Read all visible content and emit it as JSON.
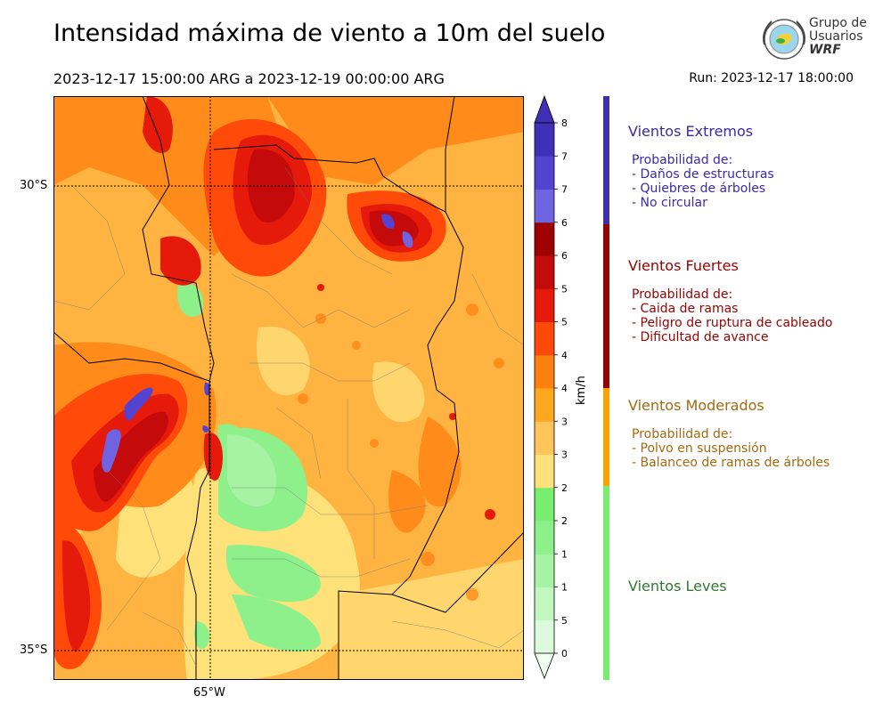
{
  "header": {
    "title": "Intensidad máxima de viento a 10m del suelo",
    "period": "2023-12-17 15:00:00 ARG  a  2023-12-19 00:00:00 ARG",
    "run": "Run: 2023-12-17 18:00:00"
  },
  "logo": {
    "line1": "Grupo de",
    "line2": "Usuarios",
    "line3": "WRF"
  },
  "map": {
    "lat_labels": [
      "30°S",
      "35°S"
    ],
    "lon_labels": [
      "65°W"
    ]
  },
  "colorbar": {
    "unit": "km/h",
    "ticks": [
      "0",
      "5",
      "10",
      "15",
      "20",
      "25",
      "30",
      "35",
      "40",
      "45",
      "50",
      "55",
      "60",
      "65",
      "70",
      "75",
      "80"
    ],
    "colors": [
      "#f0fff0",
      "#dcfadc",
      "#c2f7c0",
      "#a7f3a4",
      "#8ef08a",
      "#78ee70",
      "#ffe17a",
      "#ffc55a",
      "#ffa81f",
      "#ff7f0f",
      "#ff4a0a",
      "#e51a0a",
      "#c40a0a",
      "#9e0000",
      "#7063e0",
      "#5343d0",
      "#4030b8"
    ]
  },
  "categories": [
    {
      "title": "Vientos Extremos",
      "color": "#3a2aa8",
      "body": "Probabilidad de:\n- Daños de estructuras\n- Quiebres de árboles\n- No circular"
    },
    {
      "title": "Vientos Fuertes",
      "color": "#9a0000",
      "body": "Probabilidad de:\n- Caida de ramas\n- Peligro de ruptura de cableado\n- Dificultad de avance"
    },
    {
      "title": "Vientos Moderados",
      "color": "#a36a0f",
      "body": "Probabilidad de:\n- Polvo en suspensión\n- Balanceo de ramas de árboles"
    },
    {
      "title": "Vientos Leves",
      "color": "#2f7a2f",
      "body": ""
    }
  ],
  "scale_colors": {
    "extreme": "#3d2fb0",
    "strong": "#9a0000",
    "moderate": "#ffa000",
    "light": "#78ee70"
  }
}
